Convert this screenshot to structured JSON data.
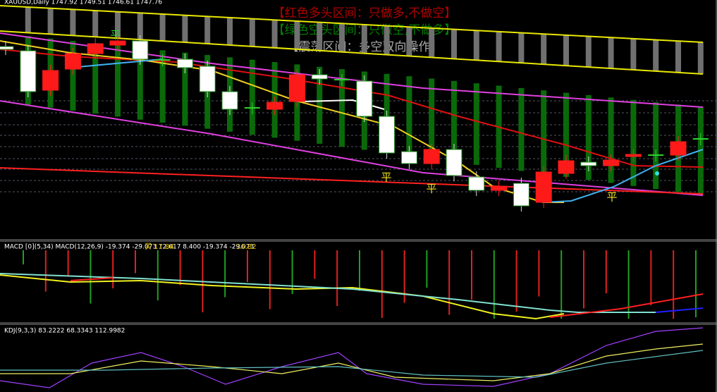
{
  "header": {
    "symbol_line": "XAUUSD,Daily 1747.92 1749.51 1746.61 1747.76"
  },
  "legend": {
    "bull": "【红色多头区间：只做多,不做空】",
    "bear": "【绿色空头区间：只做空,不做多】",
    "range": "【震荡区间：多空双向操作】"
  },
  "markers": [
    "平",
    "平",
    "平",
    "平"
  ],
  "macd": {
    "label": "MACD [0](5,34)  MACD(12,26,9) -19.374 -29.073 12.617 8.400 -19.374 -29.073",
    "buy": "买 17.84",
    "value": "36.82"
  },
  "kdj": {
    "label": "KDJ(9,3,3) 83.2222 68.3343 112.9982"
  }
}
